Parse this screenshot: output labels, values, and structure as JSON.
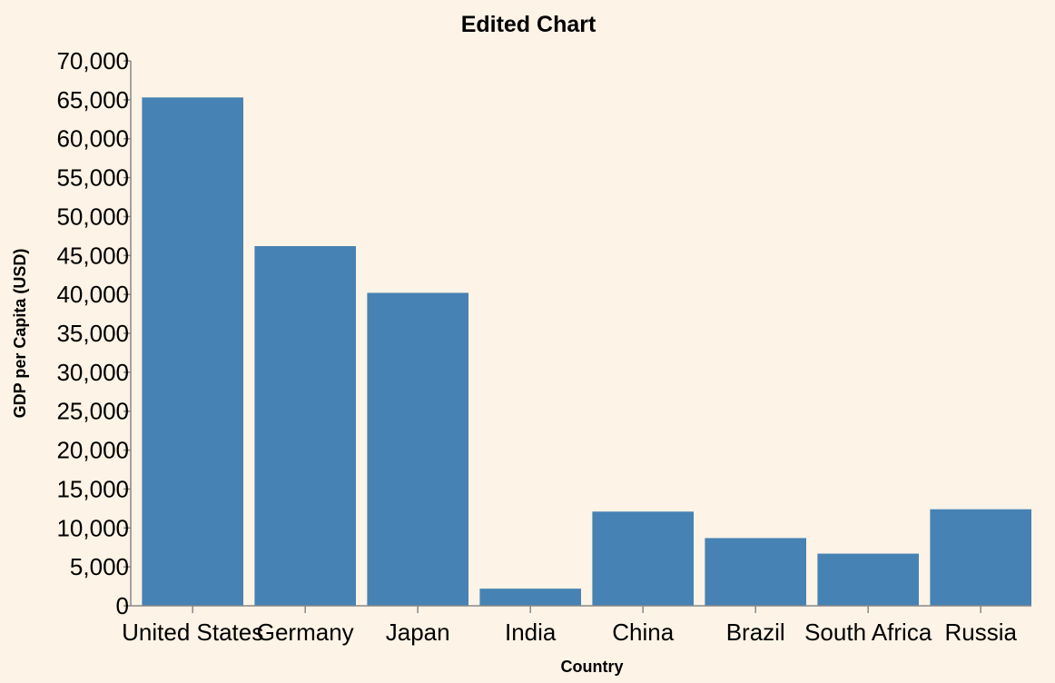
{
  "chart_data": {
    "type": "bar",
    "title": "Edited Chart",
    "xlabel": "Country",
    "ylabel": "GDP per Capita (USD)",
    "categories": [
      "United States",
      "Germany",
      "Japan",
      "India",
      "China",
      "Brazil",
      "South Africa",
      "Russia"
    ],
    "values": [
      65300,
      46200,
      40200,
      2200,
      12100,
      8700,
      6700,
      12400
    ],
    "ylim": [
      0,
      70000
    ],
    "yticks": [
      0,
      5000,
      10000,
      15000,
      20000,
      25000,
      30000,
      35000,
      40000,
      45000,
      50000,
      55000,
      60000,
      65000,
      70000
    ],
    "ytick_labels": [
      "0",
      "5,000",
      "10,000",
      "15,000",
      "20,000",
      "25,000",
      "30,000",
      "35,000",
      "40,000",
      "45,000",
      "50,000",
      "55,000",
      "60,000",
      "65,000",
      "70,000"
    ],
    "bar_color": "#4682b4",
    "background": "#fdf3e6",
    "grid": false,
    "legend": "none"
  }
}
